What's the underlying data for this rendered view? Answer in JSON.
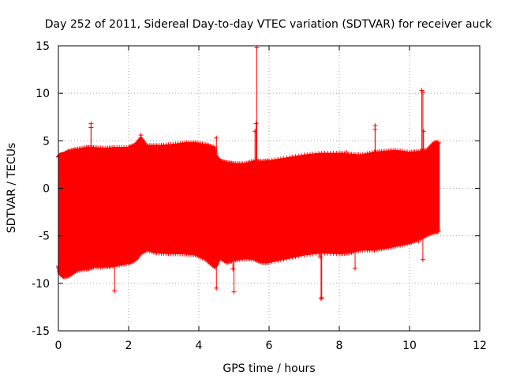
{
  "chart_data": {
    "type": "scatter",
    "title": "Day 252 of 2011, Sidereal Day-to-day VTEC variation (SDTVAR) for receiver auck",
    "xlabel": "GPS time / hours",
    "ylabel": "SDTVAR / TECUs",
    "xlim": [
      0,
      12
    ],
    "ylim": [
      -15,
      15
    ],
    "xticks": [
      0,
      2,
      4,
      6,
      8,
      10,
      12
    ],
    "yticks": [
      -15,
      -10,
      -5,
      0,
      5,
      10,
      15
    ],
    "grid": true,
    "series": [
      {
        "name": "SDTVAR",
        "color": "#ff0000",
        "marker": "+",
        "envelope": {
          "x": [
            0,
            0.05,
            0.15,
            0.3,
            0.5,
            0.8,
            1.0,
            1.3,
            1.6,
            2.0,
            2.2,
            2.35,
            2.5,
            2.8,
            3.2,
            3.6,
            3.9,
            4.2,
            4.45,
            4.5,
            4.6,
            4.8,
            5.0,
            5.3,
            5.6,
            5.8,
            6.0,
            6.5,
            7.0,
            7.5,
            8.0,
            8.3,
            8.6,
            9.0,
            9.3,
            9.6,
            10.0,
            10.3,
            10.5,
            10.7,
            10.85
          ],
          "upper": [
            3.3,
            3.5,
            3.6,
            3.9,
            4.1,
            4.3,
            4.3,
            4.2,
            4.3,
            4.3,
            4.6,
            5.3,
            4.5,
            4.5,
            4.6,
            4.8,
            4.8,
            4.6,
            4.3,
            3.3,
            2.9,
            2.7,
            2.6,
            2.6,
            2.9,
            2.8,
            2.9,
            3.2,
            3.5,
            3.7,
            3.7,
            3.6,
            3.5,
            3.8,
            3.9,
            4.0,
            3.8,
            3.9,
            4.0,
            4.8,
            4.8
          ],
          "lower": [
            -8.2,
            -9.0,
            -9.3,
            -9.2,
            -8.7,
            -8.5,
            -8.3,
            -8.3,
            -8.2,
            -7.9,
            -7.5,
            -6.8,
            -6.5,
            -6.8,
            -6.9,
            -6.9,
            -7.0,
            -7.5,
            -8.3,
            -8.0,
            -7.3,
            -7.8,
            -7.6,
            -7.4,
            -7.5,
            -7.8,
            -7.8,
            -7.4,
            -7.0,
            -6.8,
            -6.9,
            -6.8,
            -6.5,
            -6.5,
            -6.3,
            -6.1,
            -5.8,
            -5.3,
            -4.9,
            -4.6,
            -4.5
          ]
        },
        "spikes": [
          {
            "x": 0.93,
            "y": 6.8
          },
          {
            "x": 0.93,
            "y": 6.4
          },
          {
            "x": 1.6,
            "y": -10.8
          },
          {
            "x": 2.35,
            "y": 5.6
          },
          {
            "x": 4.5,
            "y": 5.3
          },
          {
            "x": 4.5,
            "y": -10.5
          },
          {
            "x": 4.47,
            "y": 3.3
          },
          {
            "x": 4.97,
            "y": -8.5
          },
          {
            "x": 5.0,
            "y": -10.9
          },
          {
            "x": 5.65,
            "y": 14.8
          },
          {
            "x": 5.63,
            "y": 6.8
          },
          {
            "x": 5.6,
            "y": 6.0
          },
          {
            "x": 7.45,
            "y": -7.2
          },
          {
            "x": 7.48,
            "y": -11.6
          },
          {
            "x": 7.5,
            "y": -11.5
          },
          {
            "x": 8.2,
            "y": 3.8
          },
          {
            "x": 8.45,
            "y": -8.4
          },
          {
            "x": 9.02,
            "y": 6.6
          },
          {
            "x": 9.02,
            "y": 6.2
          },
          {
            "x": 10.35,
            "y": 10.3
          },
          {
            "x": 10.38,
            "y": 10.1
          },
          {
            "x": 10.4,
            "y": 6.0
          },
          {
            "x": 10.38,
            "y": -7.5
          },
          {
            "x": 10.25,
            "y": -5.6
          }
        ]
      }
    ]
  }
}
